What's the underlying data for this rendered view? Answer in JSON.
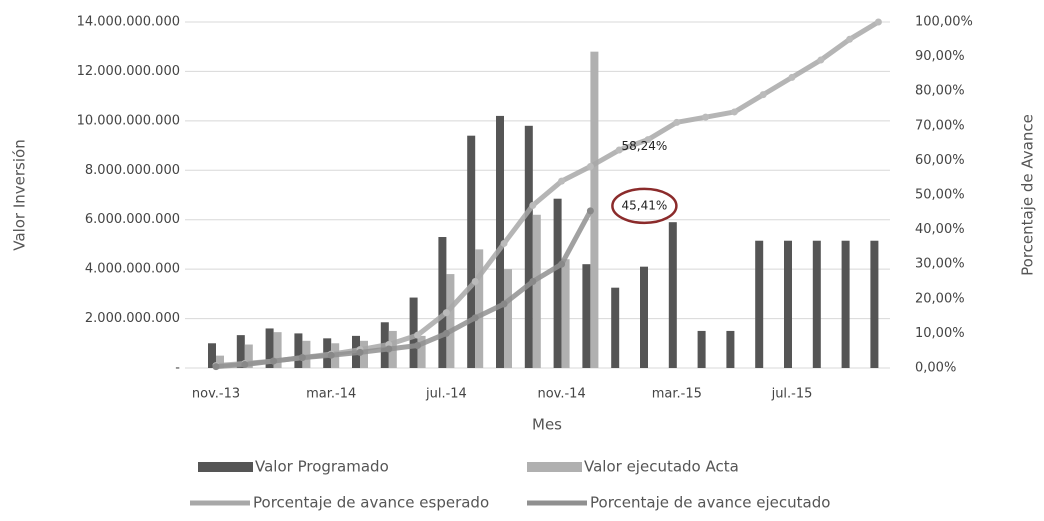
{
  "chart_data": {
    "type": "bar_line",
    "x_label": "Mes",
    "y_label": "Valor Inversión",
    "y2_label": "Porcentaje de Avance",
    "categories": [
      "nov.-13",
      null,
      null,
      null,
      "mar.-14",
      null,
      null,
      null,
      "jul.-14",
      null,
      null,
      null,
      "nov.-14",
      null,
      null,
      null,
      "mar.-15",
      null,
      null,
      null,
      "jul.-15",
      null,
      null,
      null
    ],
    "series": [
      {
        "name": "Valor Programado",
        "type": "bar",
        "color": "#555555",
        "values": [
          1000000000,
          1330000000,
          1600000000,
          1400000000,
          1200000000,
          1300000000,
          1850000000,
          2850000000,
          5300000000,
          9400000000,
          10200000000,
          9800000000,
          6850000000,
          4200000000,
          3250000000,
          4100000000,
          5900000000,
          1500000000,
          1500000000,
          5150000000,
          5150000000,
          5150000000,
          5150000000,
          5150000000
        ]
      },
      {
        "name": "Valor ejecutado Acta",
        "type": "bar",
        "color": "#b0b0b0",
        "values": [
          500000000,
          950000000,
          1450000000,
          1100000000,
          1000000000,
          1100000000,
          1500000000,
          1300000000,
          3800000000,
          4800000000,
          4000000000,
          6200000000,
          4400000000,
          12800000000,
          null,
          null,
          null,
          null,
          null,
          null,
          null,
          null,
          null,
          null
        ]
      },
      {
        "name": "Porcentaje de avance esperado",
        "type": "line",
        "axis": "y2",
        "color": "#a8a8a8",
        "values": [
          0.7,
          1.3,
          2,
          3,
          4,
          5.3,
          6.8,
          9.5,
          16,
          25,
          36,
          47,
          54,
          58.24,
          63,
          66,
          71,
          72.5,
          74,
          79,
          84,
          89,
          95,
          100
        ],
        "value_labels": [
          null,
          null,
          null,
          null,
          null,
          null,
          null,
          null,
          null,
          null,
          null,
          null,
          null,
          "58,24%",
          null,
          null,
          null,
          null,
          null,
          null,
          null,
          null,
          null,
          null
        ]
      },
      {
        "name": "Porcentaje de avance ejecutado",
        "type": "line",
        "axis": "y2",
        "color": "#909090",
        "values": [
          0.4,
          1,
          2,
          3,
          3.7,
          4.5,
          5.5,
          6.5,
          10,
          14.5,
          18.5,
          25,
          30,
          45.41,
          null,
          null,
          null,
          null,
          null,
          null,
          null,
          null,
          null,
          null
        ],
        "value_labels": [
          null,
          null,
          null,
          null,
          null,
          null,
          null,
          null,
          null,
          null,
          null,
          null,
          null,
          "45,41%",
          null,
          null,
          null,
          null,
          null,
          null,
          null,
          null,
          null,
          null
        ]
      }
    ],
    "ylim": [
      0,
      14000000000
    ],
    "yticks": [
      {
        "value": 0,
        "label": "-"
      },
      {
        "value": 2000000000,
        "label": "2.000.000.000"
      },
      {
        "value": 4000000000,
        "label": "4.000.000.000"
      },
      {
        "value": 6000000000,
        "label": "6.000.000.000"
      },
      {
        "value": 8000000000,
        "label": "8.000.000.000"
      },
      {
        "value": 10000000000,
        "label": "10.000.000.000"
      },
      {
        "value": 12000000000,
        "label": "12.000.000.000"
      },
      {
        "value": 14000000000,
        "label": "14.000.000.000"
      }
    ],
    "y2lim": [
      0,
      100
    ],
    "y2ticks": [
      {
        "value": 0,
        "label": "0,00%"
      },
      {
        "value": 10,
        "label": "10,00%"
      },
      {
        "value": 20,
        "label": "20,00%"
      },
      {
        "value": 30,
        "label": "30,00%"
      },
      {
        "value": 40,
        "label": "40,00%"
      },
      {
        "value": 50,
        "label": "50,00%"
      },
      {
        "value": 60,
        "label": "60,00%"
      },
      {
        "value": 70,
        "label": "70,00%"
      },
      {
        "value": 80,
        "label": "80,00%"
      },
      {
        "value": 90,
        "label": "90,00%"
      },
      {
        "value": 100,
        "label": "100,00%"
      }
    ],
    "grid": true,
    "legend": "bottom"
  }
}
